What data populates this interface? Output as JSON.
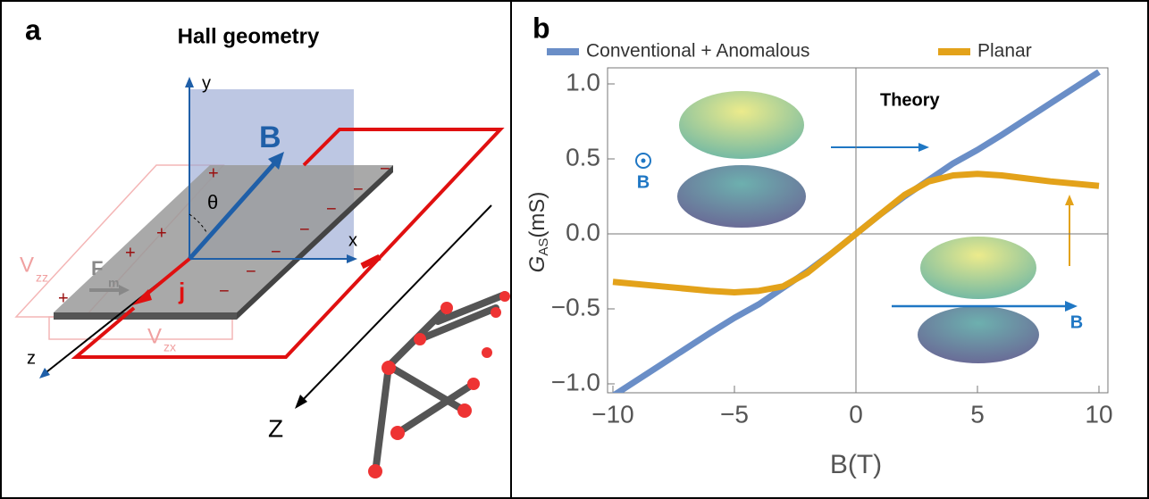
{
  "diagram": {
    "label": "a",
    "title": "Hall geometry",
    "axis_y": "y",
    "axis_x": "x",
    "axis_z": "z",
    "field": "B",
    "angle": "θ",
    "force": "F",
    "force_sub": "m",
    "current": "j",
    "voltage": "V",
    "voltage_zz_sub": "zz",
    "voltage_zx_sub": "zx",
    "chain_axis": "Z",
    "plus": "+",
    "minus": "−"
  },
  "chart_data": {
    "type": "line",
    "panel_label": "b",
    "xlabel": "B(T)",
    "ylabel": {
      "main": "G",
      "sub": "AS",
      "unit": "(mS)"
    },
    "annotations": {
      "theory": "Theory",
      "field_out": "B",
      "field_in": "B"
    },
    "x": [
      -10,
      -8,
      -6,
      -5,
      -4,
      -3,
      -2,
      -1,
      0,
      1,
      2,
      3,
      4,
      5,
      6,
      8,
      10
    ],
    "series": [
      {
        "name": "Conventional + Anomalous",
        "color": "#6a8ec7",
        "values": [
          -1.08,
          -0.87,
          -0.66,
          -0.56,
          -0.47,
          -0.36,
          -0.25,
          -0.13,
          0,
          0.13,
          0.25,
          0.36,
          0.47,
          0.56,
          0.66,
          0.87,
          1.08
        ]
      },
      {
        "name": "Planar",
        "color": "#e3a21a",
        "values": [
          -0.32,
          -0.35,
          -0.38,
          -0.39,
          -0.38,
          -0.35,
          -0.26,
          -0.13,
          0,
          0.13,
          0.26,
          0.35,
          0.39,
          0.4,
          0.39,
          0.35,
          0.32
        ]
      }
    ],
    "xlim": [
      -10.5,
      10.5
    ],
    "ylim": [
      -1.0,
      1.0
    ],
    "xticks": [
      {
        "value": -10,
        "label": "−10"
      },
      {
        "value": -5,
        "label": "−5"
      },
      0,
      5,
      10
    ],
    "yticks": [
      {
        "value": -1,
        "label": "−1.0"
      },
      {
        "value": -0.5,
        "label": "−0.5"
      },
      {
        "value": 0,
        "label": "0.0"
      },
      0.5,
      {
        "value": 1,
        "label": "1.0"
      }
    ],
    "legend": "top"
  }
}
